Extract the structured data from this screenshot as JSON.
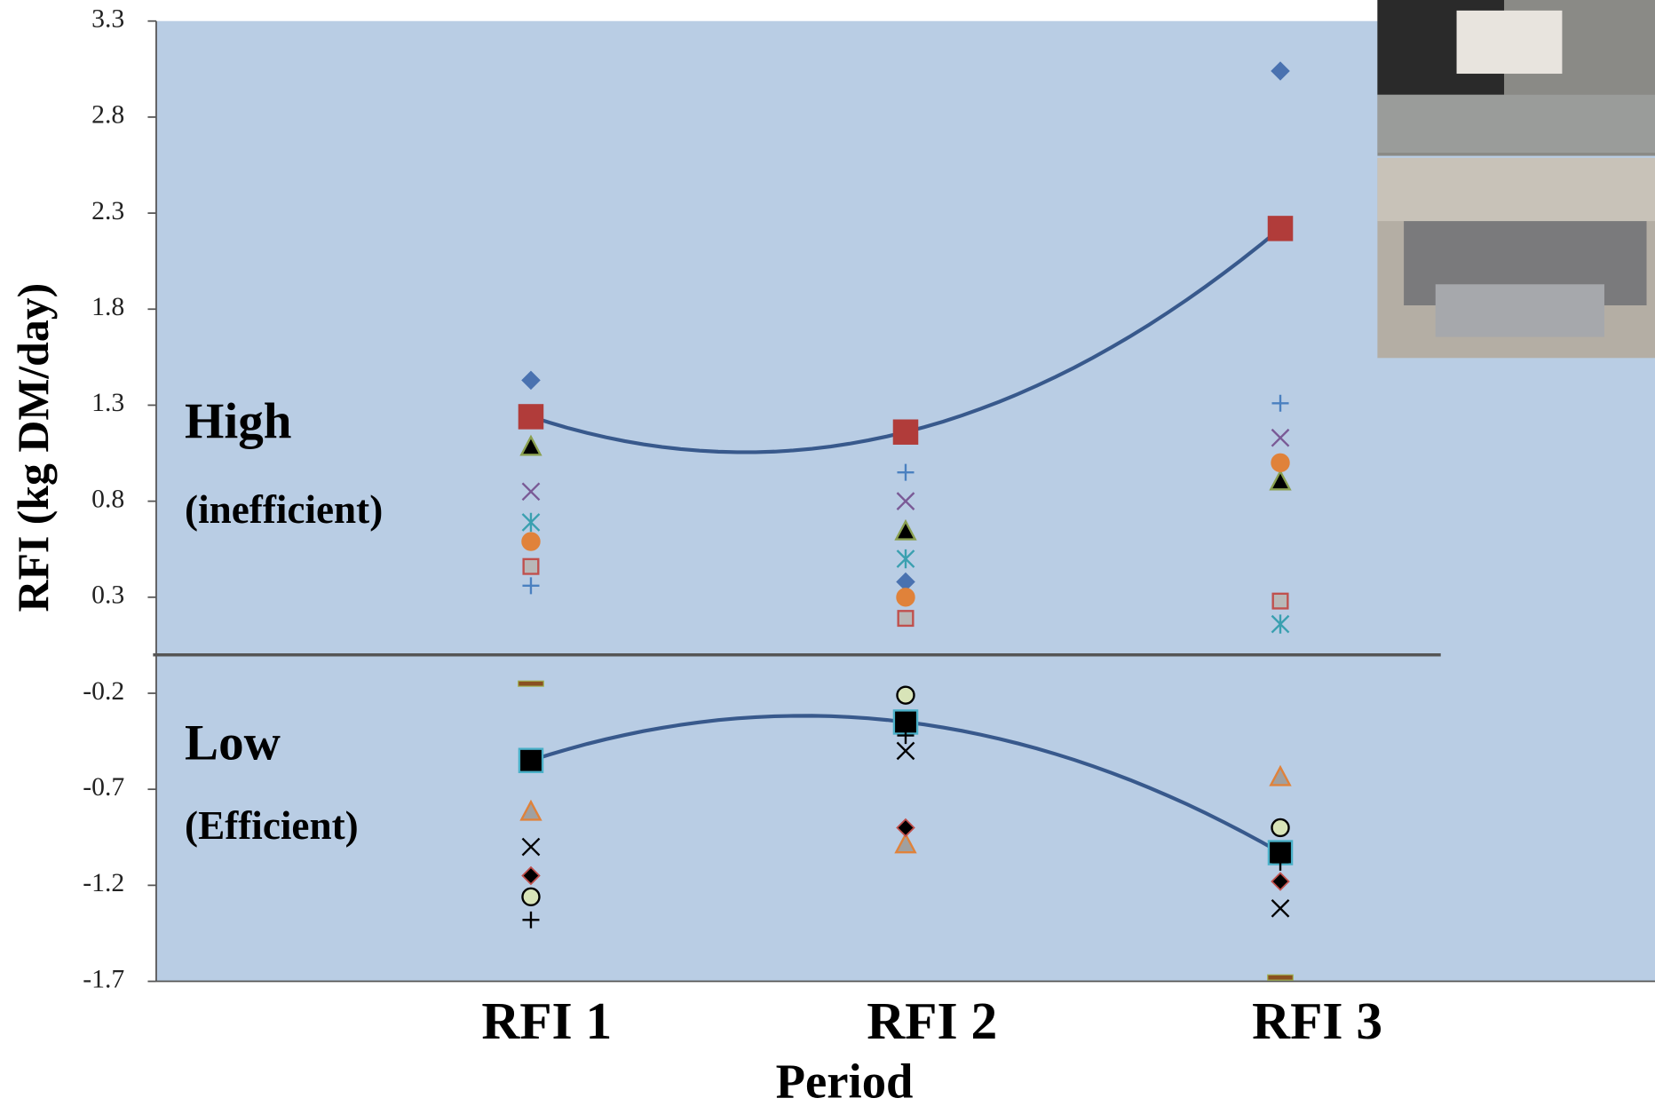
{
  "chart_data": {
    "type": "scatter",
    "y_label": "RFI (kg DM/day)",
    "x_label": "Period",
    "categories": [
      "RFI 1",
      "RFI 2",
      "RFI 3"
    ],
    "ylim": [
      -1.7,
      3.3
    ],
    "yticks": [
      -1.7,
      -1.2,
      -0.7,
      -0.2,
      0.3,
      0.8,
      1.3,
      1.8,
      2.3,
      2.8,
      3.3
    ],
    "hline": 0,
    "background": "#b9cde4",
    "annotations": [
      "High",
      "(inefficient)",
      "Low",
      "(Efficient)"
    ],
    "series": [
      {
        "marker": "diamond",
        "color": "#4a72b0",
        "values": [
          1.43,
          0.38,
          3.04
        ]
      },
      {
        "marker": "square",
        "color": "#b13c3a",
        "trend": true,
        "trend_color": "#38598c",
        "values": [
          1.24,
          1.16,
          2.22
        ]
      },
      {
        "marker": "triangle",
        "color": "#000000",
        "edge": "#8aa050",
        "values": [
          1.08,
          0.64,
          0.9
        ]
      },
      {
        "marker": "x",
        "color": "#7a5a96",
        "values": [
          0.85,
          0.8,
          1.13
        ]
      },
      {
        "marker": "asterisk",
        "color": "#3aa0b0",
        "values": [
          0.69,
          0.5,
          0.16
        ]
      },
      {
        "marker": "circle",
        "color": "#e0823a",
        "values": [
          0.59,
          0.3,
          1.0
        ]
      },
      {
        "marker": "square-small",
        "color": "#b8b8b8",
        "edge": "#c0504d",
        "values": [
          0.46,
          0.19,
          0.28
        ]
      },
      {
        "marker": "plus",
        "color": "#4a80c0",
        "values": [
          0.36,
          0.95,
          1.31
        ]
      },
      {
        "marker": "dash",
        "color": "#8a5020",
        "edge": "#a0b050",
        "values": [
          -0.15,
          null,
          -1.68
        ]
      },
      {
        "marker": "square",
        "color": "#000000",
        "edge": "#4ab0c8",
        "trend": true,
        "trend_color": "#38598c",
        "values": [
          -0.55,
          -0.35,
          -1.03
        ]
      },
      {
        "marker": "triangle",
        "color": "#a0a0a0",
        "edge": "#e0823a",
        "values": [
          -0.82,
          -0.99,
          -0.64
        ]
      },
      {
        "marker": "x",
        "color": "#000000",
        "values": [
          -1.0,
          -0.5,
          -1.32
        ]
      },
      {
        "marker": "diamond",
        "color": "#000000",
        "edge": "#c0504d",
        "values": [
          -1.15,
          -0.9,
          -1.18
        ]
      },
      {
        "marker": "circle",
        "color": "#d8e4b8",
        "edge": "#000000",
        "values": [
          -1.26,
          -0.21,
          -0.9
        ]
      },
      {
        "marker": "plus",
        "color": "#000000",
        "values": [
          -1.38,
          -0.42,
          -1.08
        ]
      }
    ]
  }
}
